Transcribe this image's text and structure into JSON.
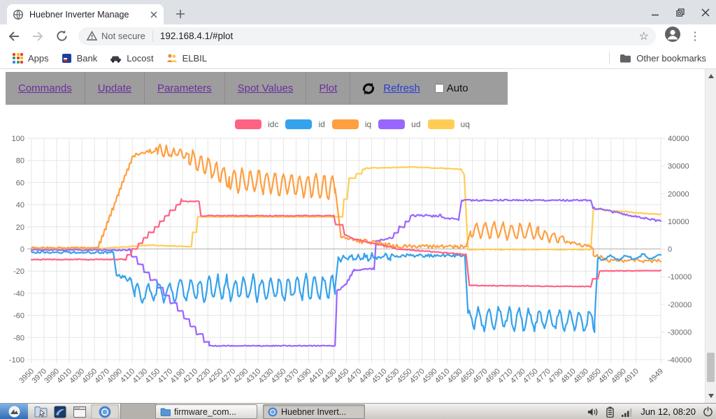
{
  "browser": {
    "tab_title": "Huebner Inverter Manage",
    "security_label": "Not secure",
    "url": "192.168.4.1/#plot",
    "apps_label": "Apps",
    "bookmarks": [
      "Bank",
      "Locost",
      "ELBIL"
    ],
    "other_bookmarks": "Other bookmarks"
  },
  "nav": {
    "links": [
      "Commands",
      "Update",
      "Parameters",
      "Spot Values",
      "Plot"
    ],
    "refresh_label": "Refresh",
    "auto_label": "Auto",
    "auto_checked": false
  },
  "chart_data": {
    "type": "line",
    "legend_position": "top",
    "x_axis_range": [
      3950,
      4949
    ],
    "left_axis_range": [
      -100,
      100
    ],
    "right_axis_range": [
      -40000,
      40000
    ],
    "right_axis_scale": 400,
    "left_ticks": [
      100,
      80,
      60,
      40,
      20,
      0,
      -20,
      -40,
      -60,
      -80,
      -100
    ],
    "right_ticks": [
      40000,
      30000,
      20000,
      10000,
      0,
      -10000,
      -20000,
      -30000,
      -40000
    ],
    "x_labels": [
      "3950",
      "3970",
      "3990",
      "4010",
      "4030",
      "4050",
      "4070",
      "4090",
      "4110",
      "4130",
      "4150",
      "4170",
      "4190",
      "4210",
      "4230",
      "4250",
      "4270",
      "4290",
      "4310",
      "4330",
      "4350",
      "4370",
      "4390",
      "4410",
      "4430",
      "4450",
      "4470",
      "4490",
      "4510",
      "4530",
      "4550",
      "4570",
      "4590",
      "4610",
      "4630",
      "4650",
      "4670",
      "4690",
      "4710",
      "4730",
      "4750",
      "4770",
      "4790",
      "4810",
      "4830",
      "4850",
      "4870",
      "4890",
      "4910",
      "4949"
    ],
    "layout": {
      "grid_color": "#e5e5e5",
      "zero_color": "#b0b0b0",
      "tick_color": "#666666",
      "grid": true
    },
    "segment_format": [
      "x_start",
      "x_end",
      "y_start",
      "y_end",
      "noise_amp",
      "step_quantize",
      "osc_amp",
      "osc_period"
    ],
    "series": [
      {
        "name": "idc",
        "color": "#ff6384",
        "axis": "left",
        "segments": [
          [
            3950,
            4098,
            -9.5,
            -9.5,
            0.4,
            0,
            0,
            0
          ],
          [
            4098,
            4188,
            -9.5,
            43,
            0.3,
            5,
            0,
            0
          ],
          [
            4188,
            4216,
            43,
            43,
            0.4,
            0,
            0,
            0
          ],
          [
            4216,
            4219,
            43,
            30,
            0,
            0,
            0,
            0
          ],
          [
            4219,
            4430,
            30,
            30,
            0.4,
            0,
            0,
            0
          ],
          [
            4430,
            4433,
            30,
            22,
            0,
            0,
            0,
            0
          ],
          [
            4433,
            4444,
            22,
            22,
            0.3,
            0,
            0,
            0
          ],
          [
            4444,
            4447,
            22,
            13,
            0,
            0,
            0,
            0
          ],
          [
            4447,
            4462,
            13,
            9,
            0.4,
            0,
            0,
            0
          ],
          [
            4462,
            4532,
            9,
            0,
            0.4,
            0,
            0,
            0
          ],
          [
            4532,
            4640,
            0,
            -5,
            0.4,
            0,
            0,
            0
          ],
          [
            4640,
            4645,
            -5,
            -32,
            0,
            0,
            0,
            0
          ],
          [
            4645,
            4838,
            -33,
            -34,
            0.3,
            0,
            0,
            0
          ],
          [
            4838,
            4841,
            -34,
            -27,
            0,
            0,
            0,
            0
          ],
          [
            4841,
            4849,
            -27,
            -27,
            0.2,
            0,
            0,
            0
          ],
          [
            4849,
            4852,
            -27,
            -20,
            0,
            0,
            0,
            0
          ],
          [
            4852,
            4949,
            -20,
            -19.5,
            0.3,
            0,
            0,
            0
          ]
        ]
      },
      {
        "name": "id",
        "color": "#36a2eb",
        "axis": "left",
        "segments": [
          [
            3950,
            4080,
            -3,
            -3,
            1,
            0,
            0,
            0
          ],
          [
            4080,
            4085,
            -3,
            -24,
            0,
            0,
            0,
            0
          ],
          [
            4085,
            4108,
            -25,
            -27,
            2.5,
            0,
            0,
            0
          ],
          [
            4108,
            4114,
            -27,
            -43,
            0,
            0,
            0,
            0
          ],
          [
            4114,
            4214,
            -40,
            -37,
            3,
            0,
            8,
            17
          ],
          [
            4214,
            4432,
            -36,
            -35,
            3.5,
            0,
            10,
            14
          ],
          [
            4432,
            4437,
            -35,
            -9,
            0,
            0,
            0,
            0
          ],
          [
            4437,
            4520,
            -8,
            -7,
            2.2,
            0,
            2,
            11
          ],
          [
            4520,
            4638,
            -6,
            -6,
            1.4,
            0,
            0,
            0
          ],
          [
            4638,
            4643,
            -6,
            -58,
            0,
            0,
            0,
            0
          ],
          [
            4643,
            4844,
            -63,
            -65,
            3.5,
            0,
            9,
            16
          ],
          [
            4844,
            4849,
            -65,
            -9,
            0,
            0,
            0,
            0
          ],
          [
            4849,
            4949,
            -8,
            -7,
            1.2,
            0,
            2,
            26
          ]
        ]
      },
      {
        "name": "iq",
        "color": "#ff9f40",
        "axis": "left",
        "segments": [
          [
            3950,
            4056,
            1,
            1,
            0.7,
            0,
            0,
            0
          ],
          [
            4056,
            4112,
            1,
            84,
            0.8,
            6,
            0,
            0
          ],
          [
            4112,
            4150,
            84,
            90,
            2.2,
            0,
            0,
            0
          ],
          [
            4150,
            4200,
            89,
            84,
            2.2,
            0,
            4,
            11
          ],
          [
            4200,
            4264,
            83,
            64,
            2,
            0,
            8,
            12
          ],
          [
            4264,
            4432,
            63,
            55,
            2.2,
            0,
            10,
            13
          ],
          [
            4432,
            4441,
            55,
            13,
            0,
            0,
            0,
            0
          ],
          [
            4441,
            4520,
            10,
            3,
            2.2,
            0,
            0,
            0
          ],
          [
            4520,
            4640,
            2.5,
            2,
            1.6,
            0,
            0,
            0
          ],
          [
            4640,
            4647,
            2,
            16,
            0,
            0,
            0,
            0
          ],
          [
            4647,
            4755,
            17,
            15,
            1.8,
            0,
            7,
            14
          ],
          [
            4755,
            4800,
            13,
            8,
            1.4,
            0,
            4,
            13
          ],
          [
            4800,
            4842,
            6,
            1,
            1.8,
            0,
            0,
            0
          ],
          [
            4842,
            4862,
            -5,
            -9,
            1.4,
            0,
            0,
            0
          ],
          [
            4862,
            4949,
            -10,
            -11,
            1.6,
            0,
            0,
            0
          ]
        ]
      },
      {
        "name": "ud",
        "color": "#9966ff",
        "axis": "right",
        "segments": [
          [
            3950,
            4105,
            -400,
            -400,
            240,
            0,
            0,
            0
          ],
          [
            4105,
            4232,
            -800,
            -34800,
            160,
            2800,
            0,
            0
          ],
          [
            4232,
            4432,
            -35000,
            -35000,
            160,
            0,
            0,
            0
          ],
          [
            4432,
            4435,
            -35000,
            -15200,
            0,
            0,
            0,
            0
          ],
          [
            4435,
            4448,
            -15200,
            -13200,
            320,
            0,
            0,
            0
          ],
          [
            4448,
            4462,
            -13200,
            -8000,
            0,
            1600,
            0,
            0
          ],
          [
            4462,
            4494,
            -7600,
            -7200,
            320,
            0,
            0,
            0
          ],
          [
            4494,
            4497,
            -7200,
            2400,
            0,
            0,
            0,
            0
          ],
          [
            4497,
            4520,
            2800,
            4000,
            320,
            0,
            0,
            0
          ],
          [
            4520,
            4556,
            4000,
            12000,
            240,
            2000,
            0,
            0
          ],
          [
            4556,
            4600,
            12000,
            12000,
            480,
            0,
            0,
            0
          ],
          [
            4600,
            4628,
            11600,
            10400,
            360,
            0,
            0,
            0
          ],
          [
            4628,
            4633,
            10400,
            17600,
            0,
            0,
            0,
            0
          ],
          [
            4633,
            4838,
            17600,
            17600,
            280,
            0,
            0,
            0
          ],
          [
            4838,
            4841,
            17600,
            15200,
            0,
            0,
            0,
            0
          ],
          [
            4841,
            4949,
            14800,
            10000,
            360,
            0,
            0,
            0
          ]
        ]
      },
      {
        "name": "uq",
        "color": "#ffcd56",
        "axis": "right",
        "segments": [
          [
            3950,
            4060,
            200,
            200,
            120,
            0,
            0,
            0
          ],
          [
            4060,
            4140,
            200,
            1400,
            120,
            0,
            0,
            0
          ],
          [
            4140,
            4204,
            1400,
            800,
            120,
            0,
            0,
            0
          ],
          [
            4204,
            4206,
            800,
            6000,
            0,
            0,
            0,
            0
          ],
          [
            4206,
            4212,
            6000,
            6000,
            0,
            0,
            0,
            0
          ],
          [
            4212,
            4214,
            6000,
            11600,
            0,
            0,
            0,
            0
          ],
          [
            4214,
            4444,
            11600,
            11600,
            100,
            0,
            0,
            0
          ],
          [
            4444,
            4446,
            11600,
            18000,
            0,
            0,
            0,
            0
          ],
          [
            4446,
            4451,
            18000,
            18000,
            0,
            0,
            0,
            0
          ],
          [
            4451,
            4454,
            18000,
            24800,
            0,
            0,
            0,
            0
          ],
          [
            4454,
            4480,
            24800,
            28800,
            0,
            1600,
            0,
            0
          ],
          [
            4480,
            4560,
            29200,
            29600,
            120,
            0,
            0,
            0
          ],
          [
            4560,
            4632,
            29600,
            28800,
            120,
            0,
            0,
            0
          ],
          [
            4632,
            4637,
            28800,
            26800,
            0,
            0,
            0,
            0
          ],
          [
            4637,
            4643,
            26800,
            0,
            0,
            0,
            0,
            0
          ],
          [
            4643,
            4838,
            -200,
            -200,
            120,
            0,
            0,
            0
          ],
          [
            4838,
            4842,
            -200,
            14400,
            0,
            0,
            0,
            0
          ],
          [
            4842,
            4949,
            14400,
            12400,
            200,
            0,
            0,
            0
          ]
        ]
      }
    ]
  },
  "taskbar": {
    "windows": [
      "firmware_com...",
      "Huebner Invert..."
    ],
    "clock": "Jun 12, 08:20"
  }
}
